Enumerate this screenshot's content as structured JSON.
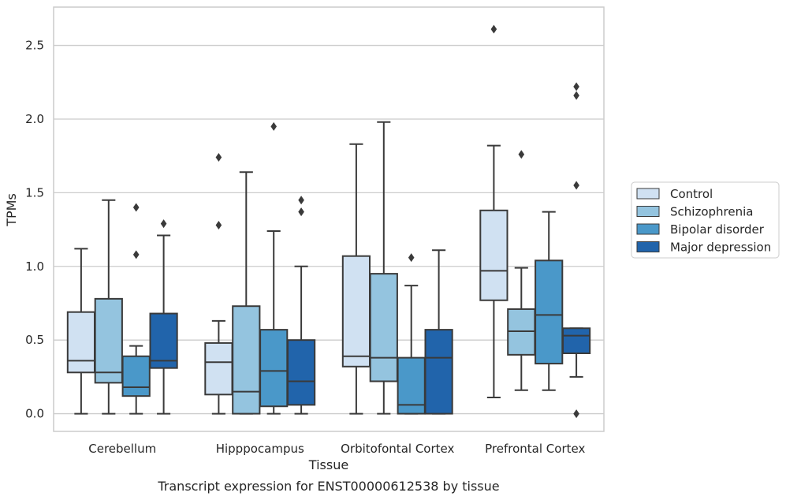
{
  "colors": {
    "Control": "#d0e1f2",
    "Schizophrenia": "#94c4df",
    "Bipolar disorder": "#4a98c9",
    "Major depression": "#2164ab",
    "line": "#3a3a3a",
    "grid": "#cccccc"
  },
  "chart_data": {
    "type": "box",
    "caption": "Transcript expression for ENST00000612538 by tissue",
    "xlabel": "Tissue",
    "ylabel": "TPMs",
    "ylim": [
      -0.12,
      2.76
    ],
    "yticks": [
      0.0,
      0.5,
      1.0,
      1.5,
      2.0,
      2.5
    ],
    "ytick_labels": [
      "0.0",
      "0.5",
      "1.0",
      "1.5",
      "2.0",
      "2.5"
    ],
    "grid": true,
    "legend_position": "right",
    "categories": [
      "Cerebellum",
      "Hipppocampus",
      "Orbitofontal Cortex",
      "Prefrontal Cortex"
    ],
    "series": [
      {
        "name": "Control",
        "boxes": [
          {
            "whislo": 0.0,
            "q1": 0.28,
            "med": 0.36,
            "q3": 0.69,
            "whishi": 1.12,
            "fliers": []
          },
          {
            "whislo": 0.0,
            "q1": 0.13,
            "med": 0.35,
            "q3": 0.48,
            "whishi": 0.63,
            "fliers": [
              1.28,
              1.74
            ]
          },
          {
            "whislo": 0.0,
            "q1": 0.32,
            "med": 0.39,
            "q3": 1.07,
            "whishi": 1.83,
            "fliers": []
          },
          {
            "whislo": 0.11,
            "q1": 0.77,
            "med": 0.97,
            "q3": 1.38,
            "whishi": 1.82,
            "fliers": [
              2.61
            ]
          }
        ]
      },
      {
        "name": "Schizophrenia",
        "boxes": [
          {
            "whislo": 0.0,
            "q1": 0.21,
            "med": 0.28,
            "q3": 0.78,
            "whishi": 1.45,
            "fliers": []
          },
          {
            "whislo": 0.0,
            "q1": 0.0,
            "med": 0.15,
            "q3": 0.73,
            "whishi": 1.64,
            "fliers": []
          },
          {
            "whislo": 0.0,
            "q1": 0.22,
            "med": 0.38,
            "q3": 0.95,
            "whishi": 1.98,
            "fliers": []
          },
          {
            "whislo": 0.16,
            "q1": 0.4,
            "med": 0.56,
            "q3": 0.71,
            "whishi": 0.99,
            "fliers": [
              1.76
            ]
          }
        ]
      },
      {
        "name": "Bipolar disorder",
        "boxes": [
          {
            "whislo": 0.0,
            "q1": 0.12,
            "med": 0.18,
            "q3": 0.39,
            "whishi": 0.46,
            "fliers": [
              1.08,
              1.4
            ]
          },
          {
            "whislo": 0.0,
            "q1": 0.05,
            "med": 0.29,
            "q3": 0.57,
            "whishi": 1.24,
            "fliers": [
              1.95
            ]
          },
          {
            "whislo": 0.0,
            "q1": 0.0,
            "med": 0.06,
            "q3": 0.38,
            "whishi": 0.87,
            "fliers": [
              1.06
            ]
          },
          {
            "whislo": 0.16,
            "q1": 0.34,
            "med": 0.67,
            "q3": 1.04,
            "whishi": 1.37,
            "fliers": []
          }
        ]
      },
      {
        "name": "Major depression",
        "boxes": [
          {
            "whislo": 0.0,
            "q1": 0.31,
            "med": 0.36,
            "q3": 0.68,
            "whishi": 1.21,
            "fliers": [
              1.29
            ]
          },
          {
            "whislo": 0.0,
            "q1": 0.06,
            "med": 0.22,
            "q3": 0.5,
            "whishi": 1.0,
            "fliers": [
              1.37,
              1.45
            ]
          },
          {
            "whislo": 0.0,
            "q1": 0.0,
            "med": 0.38,
            "q3": 0.57,
            "whishi": 1.11,
            "fliers": []
          },
          {
            "whislo": 0.25,
            "q1": 0.41,
            "med": 0.53,
            "q3": 0.58,
            "whishi": 0.58,
            "fliers": [
              0.0,
              1.55,
              2.16,
              2.22
            ]
          }
        ]
      }
    ]
  }
}
